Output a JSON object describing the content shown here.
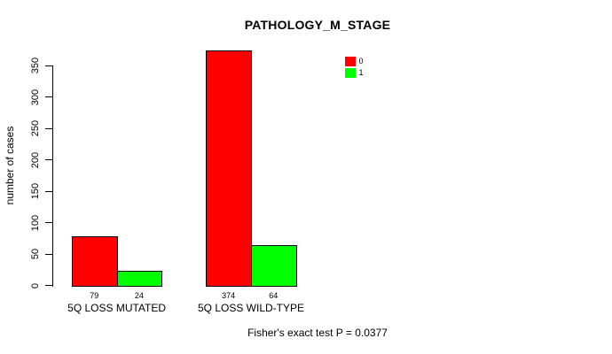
{
  "chart_data": {
    "type": "bar",
    "title": "PATHOLOGY_M_STAGE",
    "ylabel": "number of cases",
    "xlabel": "",
    "categories": [
      "5Q LOSS MUTATED",
      "5Q LOSS WILD-TYPE"
    ],
    "series": [
      {
        "name": "0",
        "color": "#ff0000",
        "values": [
          79,
          374
        ]
      },
      {
        "name": "1",
        "color": "#00ff00",
        "values": [
          24,
          64
        ]
      }
    ],
    "bar_count_labels": [
      [
        "79",
        "24"
      ],
      [
        "374",
        "64"
      ]
    ],
    "yticks": [
      0,
      50,
      100,
      150,
      200,
      250,
      300,
      350
    ],
    "ylim": [
      0,
      374
    ],
    "grid": false,
    "legend": {
      "position": "top-right",
      "entries": [
        "0",
        "1"
      ]
    },
    "footer": "Fisher's exact test P = 0.0377",
    "colors": {
      "bar_border": "#000000",
      "axis": "#000000",
      "text": "#000000",
      "background": "#ffffff"
    }
  }
}
